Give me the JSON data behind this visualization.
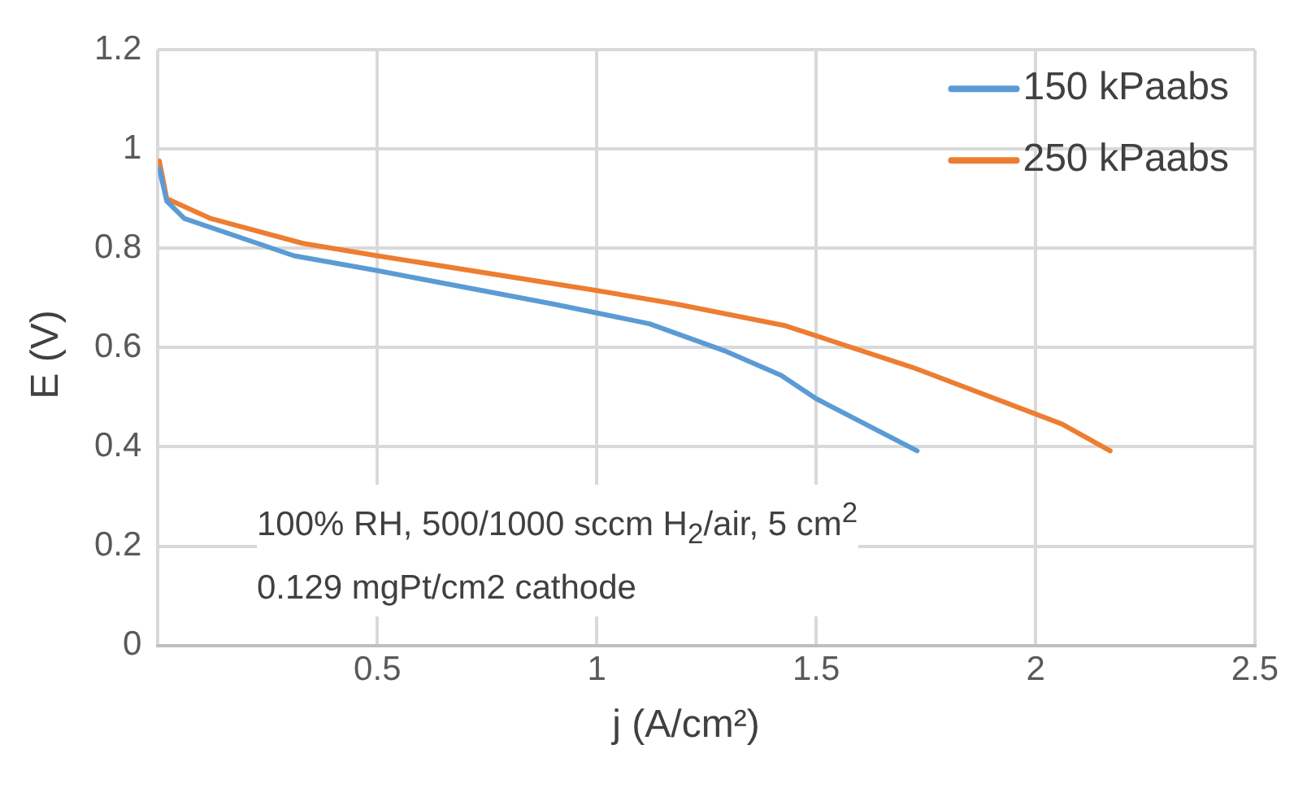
{
  "chart_data": {
    "type": "line",
    "xlabel": "j (A/cm²)",
    "ylabel": "E (V)",
    "xlim": [
      0,
      2.5
    ],
    "xticks": [
      {
        "value": 0,
        "label": null
      },
      0.5,
      1,
      1.5,
      2,
      2.5
    ],
    "ylim": [
      0,
      1.2
    ],
    "yticks": [
      0,
      0.2,
      0.4,
      0.6,
      0.8,
      1,
      1.2
    ],
    "grid": true,
    "legend": "top right",
    "marker": "none",
    "line_style": "solid",
    "annotations": [
      "100% RH, 500/1000 sccm H$_{2}$/air, 5 cm$^{2}$",
      "0.129 mgPt/cm2 cathode"
    ],
    "series": [
      {
        "name": "150 kPaabs",
        "color": "#5b9bd5",
        "x": [
          0.003,
          0.02,
          0.06,
          0.31,
          0.5,
          0.9,
          1.12,
          1.29,
          1.42,
          1.5,
          1.73
        ],
        "values": [
          0.96,
          0.895,
          0.86,
          0.785,
          0.755,
          0.688,
          0.648,
          0.594,
          0.544,
          0.497,
          0.392
        ]
      },
      {
        "name": "250 kPaabs",
        "color": "#ed7d31",
        "x": [
          0.003,
          0.02,
          0.12,
          0.33,
          0.5,
          1.0,
          1.18,
          1.43,
          1.72,
          2.06,
          2.17
        ],
        "values": [
          0.976,
          0.9,
          0.86,
          0.81,
          0.785,
          0.715,
          0.688,
          0.644,
          0.56,
          0.446,
          0.392
        ]
      }
    ]
  }
}
